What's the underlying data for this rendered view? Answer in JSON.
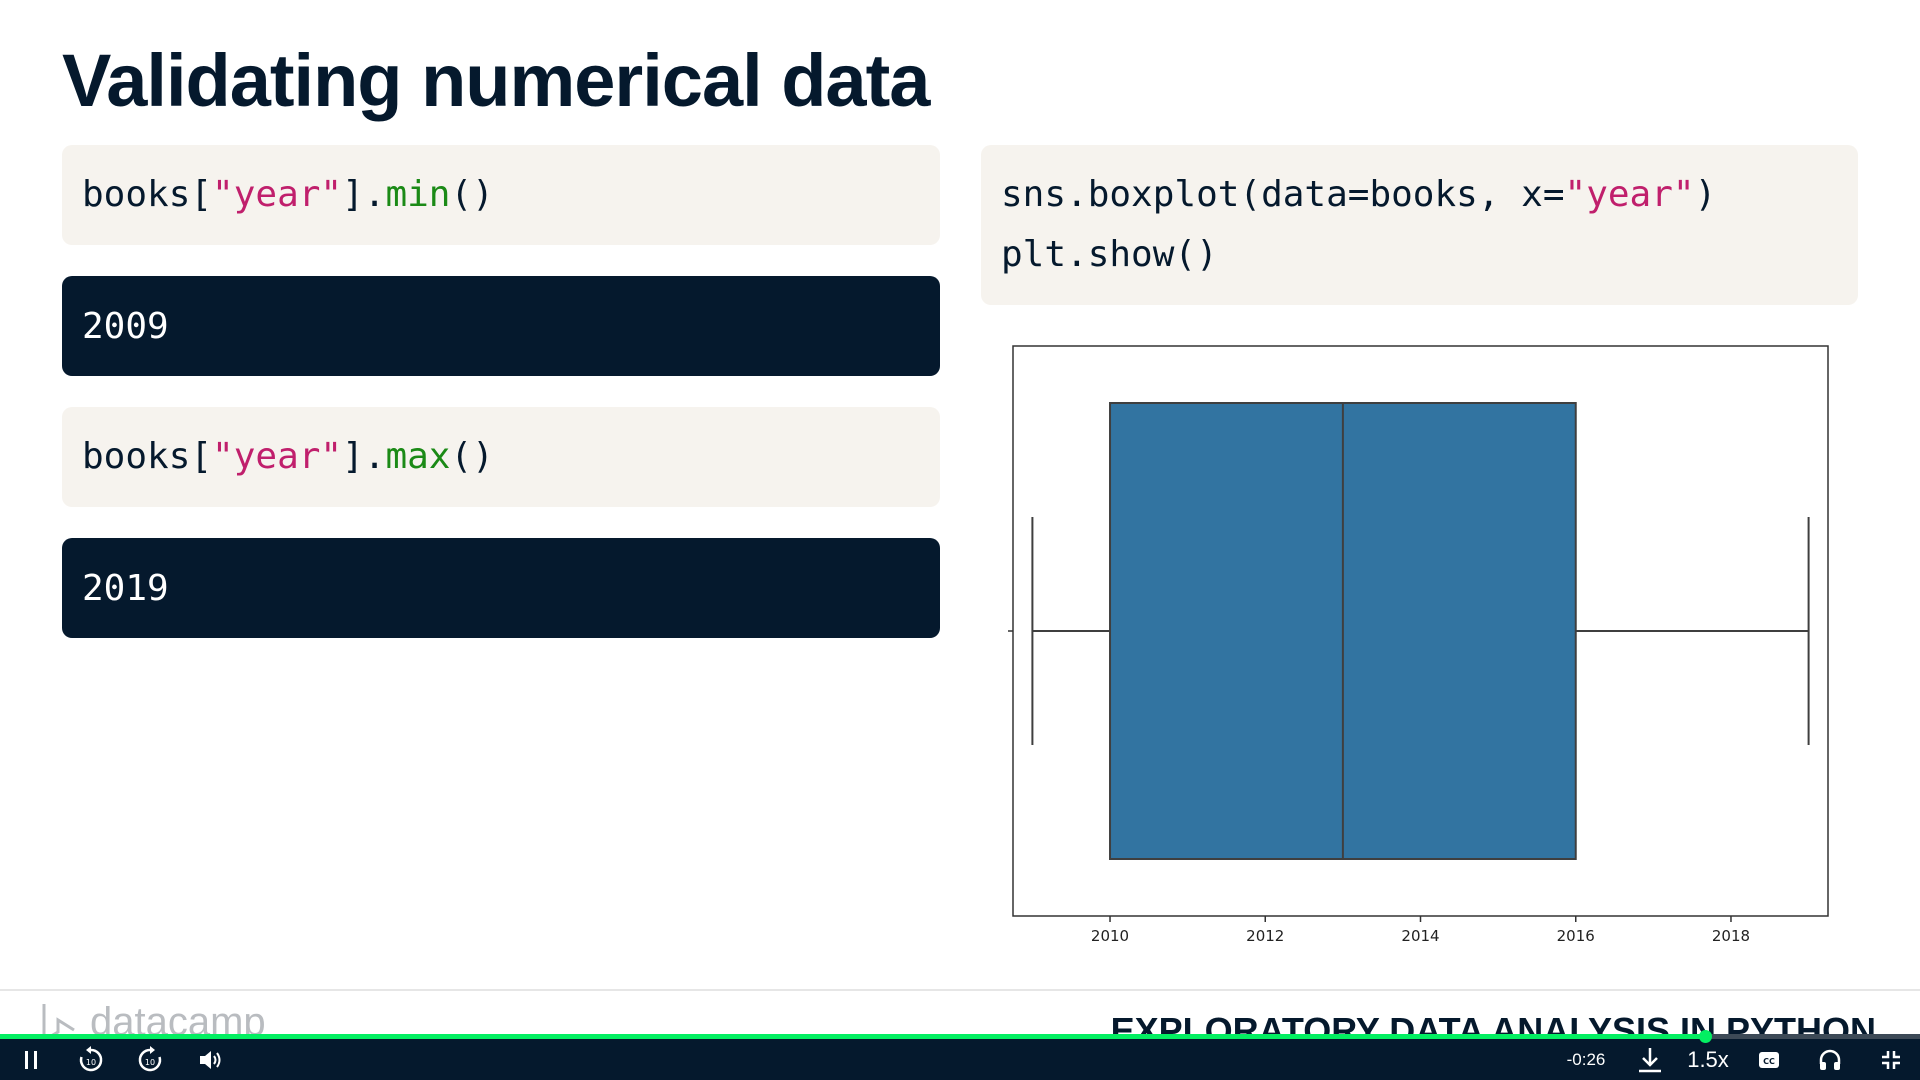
{
  "slide": {
    "title": "Validating numerical data"
  },
  "code_min": {
    "obj": "books[",
    "key": "\"year\"",
    "close": "].",
    "method": "min",
    "parens": "()"
  },
  "output_min": "2009",
  "code_max": {
    "obj": "books[",
    "key": "\"year\"",
    "close": "].",
    "method": "max",
    "parens": "()"
  },
  "output_max": "2019",
  "code_plot": {
    "line1_a": "sns.boxplot(data=books, x=",
    "line1_str": "\"year\"",
    "line1_b": ")",
    "line2": "plt.show()"
  },
  "chart_data": {
    "type": "boxplot",
    "title": "",
    "xlabel": "",
    "ylabel": "",
    "xlim": [
      2008.75,
      2019.25
    ],
    "xticks": [
      "2010",
      "2012",
      "2014",
      "2016",
      "2018"
    ],
    "xtick_values": [
      2010,
      2012,
      2014,
      2016,
      2018
    ],
    "min": 2009,
    "q1": 2010,
    "median": 2013,
    "q3": 2016,
    "max": 2019,
    "box_color": "#3274a1",
    "grid": false
  },
  "footer": {
    "logo_text": "datacamp",
    "course_title": "EXPLORATORY DATA ANALYSIS IN PYTHON"
  },
  "player": {
    "time_remaining": "-0:26",
    "speed": "1.5x",
    "progress_fraction": 0.888,
    "accent_color": "#03ef62",
    "icons": [
      "pause-icon",
      "rewind-10-icon",
      "forward-10-icon",
      "volume-icon",
      "download-icon",
      "captions-icon",
      "audio-headphones-icon",
      "exit-fullscreen-icon"
    ]
  }
}
